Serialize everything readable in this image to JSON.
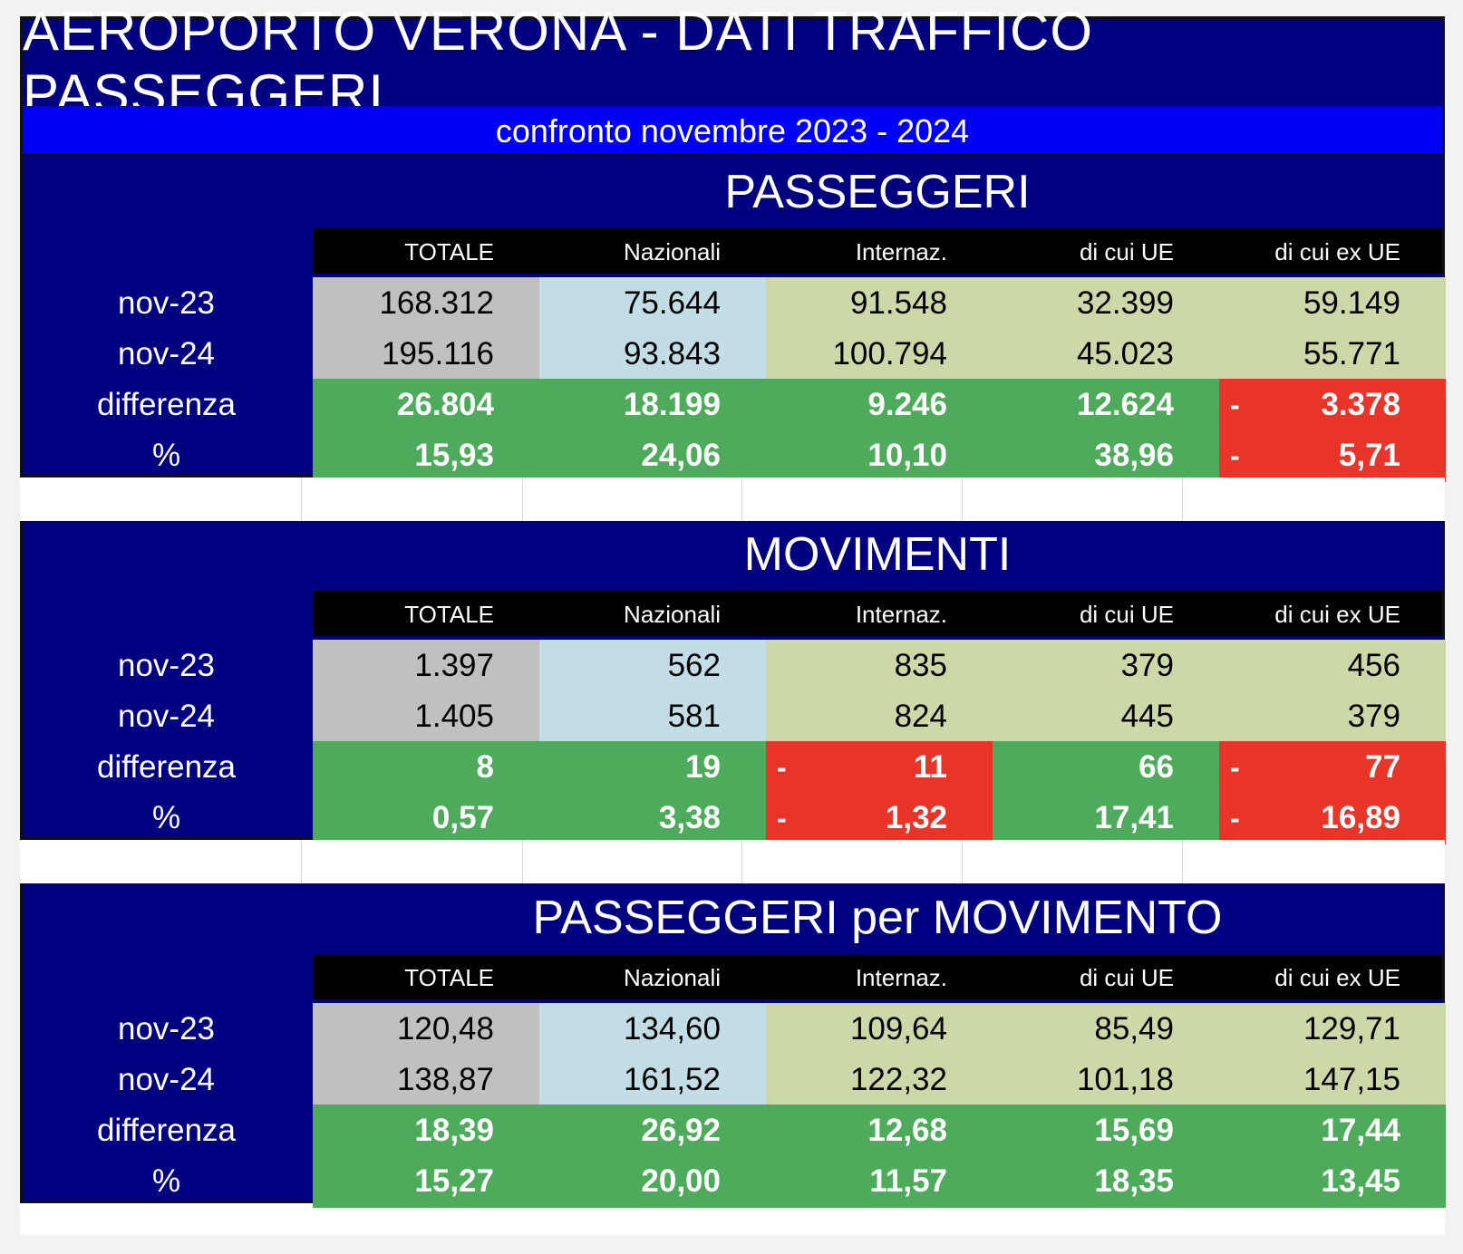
{
  "header": {
    "title": "AEROPORTO VERONA - DATI TRAFFICO PASSEGGERI",
    "subtitle": "confronto novembre 2023 - 2024"
  },
  "columns": [
    "TOTALE",
    "Nazionali",
    "Internaz.",
    "di cui UE",
    "di cui ex UE"
  ],
  "row_labels": [
    "nov-23",
    "nov-24",
    "differenza",
    "%"
  ],
  "colors": {
    "navy": "#000080",
    "subtitle_blue": "#0000f5",
    "grey": "#c0c0c0",
    "light_blue": "#c2dde6",
    "olive": "#ccd8a8",
    "green": "#4eab5c",
    "red": "#e93529"
  },
  "sections": [
    {
      "title": "PASSEGGERI",
      "rows": [
        [
          "168.312",
          "75.644",
          "91.548",
          "32.399",
          "59.149"
        ],
        [
          "195.116",
          "93.843",
          "100.794",
          "45.023",
          "55.771"
        ],
        [
          "26.804",
          "18.199",
          "9.246",
          "12.624",
          "3.378"
        ],
        [
          "15,93",
          "24,06",
          "10,10",
          "38,96",
          "5,71"
        ]
      ],
      "negative": [
        [
          false,
          false,
          false,
          false,
          true
        ],
        [
          false,
          false,
          false,
          false,
          true
        ]
      ],
      "minus_sign": "-"
    },
    {
      "title": "MOVIMENTI",
      "rows": [
        [
          "1.397",
          "562",
          "835",
          "379",
          "456"
        ],
        [
          "1.405",
          "581",
          "824",
          "445",
          "379"
        ],
        [
          "8",
          "19",
          "11",
          "66",
          "77"
        ],
        [
          "0,57",
          "3,38",
          "1,32",
          "17,41",
          "16,89"
        ]
      ],
      "negative": [
        [
          false,
          false,
          true,
          false,
          true
        ],
        [
          false,
          false,
          true,
          false,
          true
        ]
      ],
      "minus_sign": "-"
    },
    {
      "title": "PASSEGGERI per MOVIMENTO",
      "rows": [
        [
          "120,48",
          "134,60",
          "109,64",
          "85,49",
          "129,71"
        ],
        [
          "138,87",
          "161,52",
          "122,32",
          "101,18",
          "147,15"
        ],
        [
          "18,39",
          "26,92",
          "12,68",
          "15,69",
          "17,44"
        ],
        [
          "15,27",
          "20,00",
          "11,57",
          "18,35",
          "13,45"
        ]
      ],
      "negative": [
        [
          false,
          false,
          false,
          false,
          false
        ],
        [
          false,
          false,
          false,
          false,
          false
        ]
      ],
      "minus_sign": "-"
    }
  ]
}
